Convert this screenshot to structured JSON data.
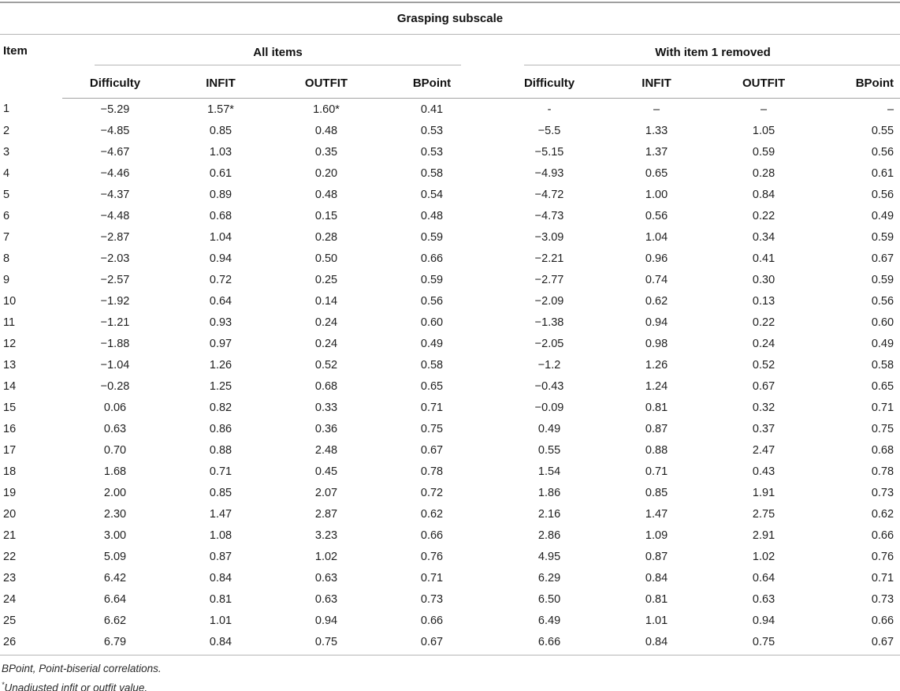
{
  "table": {
    "title": "Grasping subscale",
    "item_header": "Item",
    "groups": [
      {
        "label": "All items",
        "columns": [
          "Difficulty",
          "INFIT",
          "OUTFIT",
          "BPoint"
        ]
      },
      {
        "label": "With item 1 removed",
        "columns": [
          "Difficulty",
          "INFIT",
          "OUTFIT",
          "BPoint"
        ]
      }
    ],
    "rows": [
      {
        "item": "1",
        "all": [
          "−5.29",
          "1.57*",
          "1.60*",
          "0.41"
        ],
        "removed": [
          "-",
          "–",
          "–",
          "–"
        ]
      },
      {
        "item": "2",
        "all": [
          "−4.85",
          "0.85",
          "0.48",
          "0.53"
        ],
        "removed": [
          "−5.5",
          "1.33",
          "1.05",
          "0.55"
        ]
      },
      {
        "item": "3",
        "all": [
          "−4.67",
          "1.03",
          "0.35",
          "0.53"
        ],
        "removed": [
          "−5.15",
          "1.37",
          "0.59",
          "0.56"
        ]
      },
      {
        "item": "4",
        "all": [
          "−4.46",
          "0.61",
          "0.20",
          "0.58"
        ],
        "removed": [
          "−4.93",
          "0.65",
          "0.28",
          "0.61"
        ]
      },
      {
        "item": "5",
        "all": [
          "−4.37",
          "0.89",
          "0.48",
          "0.54"
        ],
        "removed": [
          "−4.72",
          "1.00",
          "0.84",
          "0.56"
        ]
      },
      {
        "item": "6",
        "all": [
          "−4.48",
          "0.68",
          "0.15",
          "0.48"
        ],
        "removed": [
          "−4.73",
          "0.56",
          "0.22",
          "0.49"
        ]
      },
      {
        "item": "7",
        "all": [
          "−2.87",
          "1.04",
          "0.28",
          "0.59"
        ],
        "removed": [
          "−3.09",
          "1.04",
          "0.34",
          "0.59"
        ]
      },
      {
        "item": "8",
        "all": [
          "−2.03",
          "0.94",
          "0.50",
          "0.66"
        ],
        "removed": [
          "−2.21",
          "0.96",
          "0.41",
          "0.67"
        ]
      },
      {
        "item": "9",
        "all": [
          "−2.57",
          "0.72",
          "0.25",
          "0.59"
        ],
        "removed": [
          "−2.77",
          "0.74",
          "0.30",
          "0.59"
        ]
      },
      {
        "item": "10",
        "all": [
          "−1.92",
          "0.64",
          "0.14",
          "0.56"
        ],
        "removed": [
          "−2.09",
          "0.62",
          "0.13",
          "0.56"
        ]
      },
      {
        "item": "11",
        "all": [
          "−1.21",
          "0.93",
          "0.24",
          "0.60"
        ],
        "removed": [
          "−1.38",
          "0.94",
          "0.22",
          "0.60"
        ]
      },
      {
        "item": "12",
        "all": [
          "−1.88",
          "0.97",
          "0.24",
          "0.49"
        ],
        "removed": [
          "−2.05",
          "0.98",
          "0.24",
          "0.49"
        ]
      },
      {
        "item": "13",
        "all": [
          "−1.04",
          "1.26",
          "0.52",
          "0.58"
        ],
        "removed": [
          "−1.2",
          "1.26",
          "0.52",
          "0.58"
        ]
      },
      {
        "item": "14",
        "all": [
          "−0.28",
          "1.25",
          "0.68",
          "0.65"
        ],
        "removed": [
          "−0.43",
          "1.24",
          "0.67",
          "0.65"
        ]
      },
      {
        "item": "15",
        "all": [
          "0.06",
          "0.82",
          "0.33",
          "0.71"
        ],
        "removed": [
          "−0.09",
          "0.81",
          "0.32",
          "0.71"
        ]
      },
      {
        "item": "16",
        "all": [
          "0.63",
          "0.86",
          "0.36",
          "0.75"
        ],
        "removed": [
          "0.49",
          "0.87",
          "0.37",
          "0.75"
        ]
      },
      {
        "item": "17",
        "all": [
          "0.70",
          "0.88",
          "2.48",
          "0.67"
        ],
        "removed": [
          "0.55",
          "0.88",
          "2.47",
          "0.68"
        ]
      },
      {
        "item": "18",
        "all": [
          "1.68",
          "0.71",
          "0.45",
          "0.78"
        ],
        "removed": [
          "1.54",
          "0.71",
          "0.43",
          "0.78"
        ]
      },
      {
        "item": "19",
        "all": [
          "2.00",
          "0.85",
          "2.07",
          "0.72"
        ],
        "removed": [
          "1.86",
          "0.85",
          "1.91",
          "0.73"
        ]
      },
      {
        "item": "20",
        "all": [
          "2.30",
          "1.47",
          "2.87",
          "0.62"
        ],
        "removed": [
          "2.16",
          "1.47",
          "2.75",
          "0.62"
        ]
      },
      {
        "item": "21",
        "all": [
          "3.00",
          "1.08",
          "3.23",
          "0.66"
        ],
        "removed": [
          "2.86",
          "1.09",
          "2.91",
          "0.66"
        ]
      },
      {
        "item": "22",
        "all": [
          "5.09",
          "0.87",
          "1.02",
          "0.76"
        ],
        "removed": [
          "4.95",
          "0.87",
          "1.02",
          "0.76"
        ]
      },
      {
        "item": "23",
        "all": [
          "6.42",
          "0.84",
          "0.63",
          "0.71"
        ],
        "removed": [
          "6.29",
          "0.84",
          "0.64",
          "0.71"
        ]
      },
      {
        "item": "24",
        "all": [
          "6.64",
          "0.81",
          "0.63",
          "0.73"
        ],
        "removed": [
          "6.50",
          "0.81",
          "0.63",
          "0.73"
        ]
      },
      {
        "item": "25",
        "all": [
          "6.62",
          "1.01",
          "0.94",
          "0.66"
        ],
        "removed": [
          "6.49",
          "1.01",
          "0.94",
          "0.66"
        ]
      },
      {
        "item": "26",
        "all": [
          "6.79",
          "0.84",
          "0.75",
          "0.67"
        ],
        "removed": [
          "6.66",
          "0.84",
          "0.75",
          "0.67"
        ]
      }
    ],
    "footnotes": [
      {
        "marker": "",
        "text": "BPoint, Point-biserial correlations."
      },
      {
        "marker": "*",
        "text": "Unadjusted infit or outfit value."
      }
    ]
  }
}
